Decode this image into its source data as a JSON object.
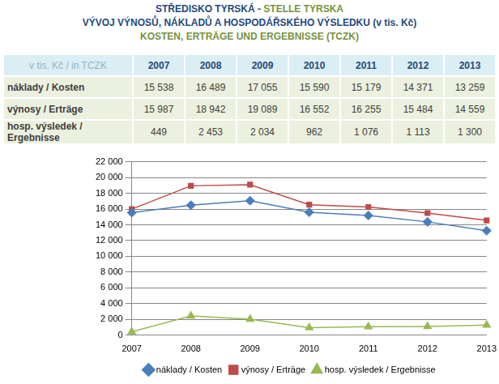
{
  "header": {
    "lines": [
      [
        "STŘEDISKO TYRSKÁ",
        " - ",
        "STELLE TYRSKA"
      ],
      [
        "VÝVOJ VÝNOSŮ, NÁKLADŮ A HOSPODÁŘSKÉHO VÝSLEDKU (v tis. Kč)"
      ],
      [
        "KOSTEN, ERTRÄGE UND ERGEBNISSE (TCZK)"
      ]
    ]
  },
  "table": {
    "rows": [
      [
        "v tis. Kč / in TCZK",
        "2007",
        "2008",
        "2009",
        "2010",
        "2011",
        "2012",
        "2013"
      ],
      [
        "náklady / Kosten",
        "15 538",
        "16 489",
        "17 055",
        "15 590",
        "15 179",
        "14 371",
        "13 259"
      ],
      [
        "výnosy / Erträge",
        "15 987",
        "18 942",
        "19 089",
        "16 552",
        "16 255",
        "15 484",
        "14 559"
      ],
      [
        "hosp. výsledek / Ergebnisse",
        "449",
        "2 453",
        "2 034",
        "962",
        "1 076",
        "1 113",
        "1 300"
      ]
    ]
  },
  "chart_data": {
    "type": "line",
    "categories": [
      "2007",
      "2008",
      "2009",
      "2010",
      "2011",
      "2012",
      "2013"
    ],
    "series": [
      {
        "name": "náklady / Kosten",
        "color": "#4a7ebb",
        "marker": "diamond",
        "values": [
          15538,
          16489,
          17055,
          15590,
          15179,
          14371,
          13259
        ]
      },
      {
        "name": "výnosy / Erträge",
        "color": "#be4b48",
        "marker": "square",
        "values": [
          15987,
          18942,
          19089,
          16552,
          16255,
          15484,
          14559
        ]
      },
      {
        "name": "hosp. výsledek / Ergebnisse",
        "color": "#98b954",
        "marker": "triangle",
        "values": [
          449,
          2453,
          2034,
          962,
          1076,
          1113,
          1300
        ]
      }
    ],
    "ylim": [
      0,
      22000
    ],
    "yticks": [
      0,
      {
        "value": 2000,
        "label": "2 000"
      },
      {
        "value": 4000,
        "label": "4 000"
      },
      {
        "value": 6000,
        "label": "6 000"
      },
      {
        "value": 8000,
        "label": "8 000"
      },
      {
        "value": 10000,
        "label": "10 000"
      },
      {
        "value": 12000,
        "label": "12 000"
      },
      {
        "value": 14000,
        "label": "14 000"
      },
      {
        "value": 16000,
        "label": "16 000"
      },
      {
        "value": 18000,
        "label": "18 000"
      },
      {
        "value": 20000,
        "label": "20 000"
      },
      {
        "value": 22000,
        "label": "22 000"
      }
    ],
    "grid": true,
    "legend": "bottom"
  }
}
